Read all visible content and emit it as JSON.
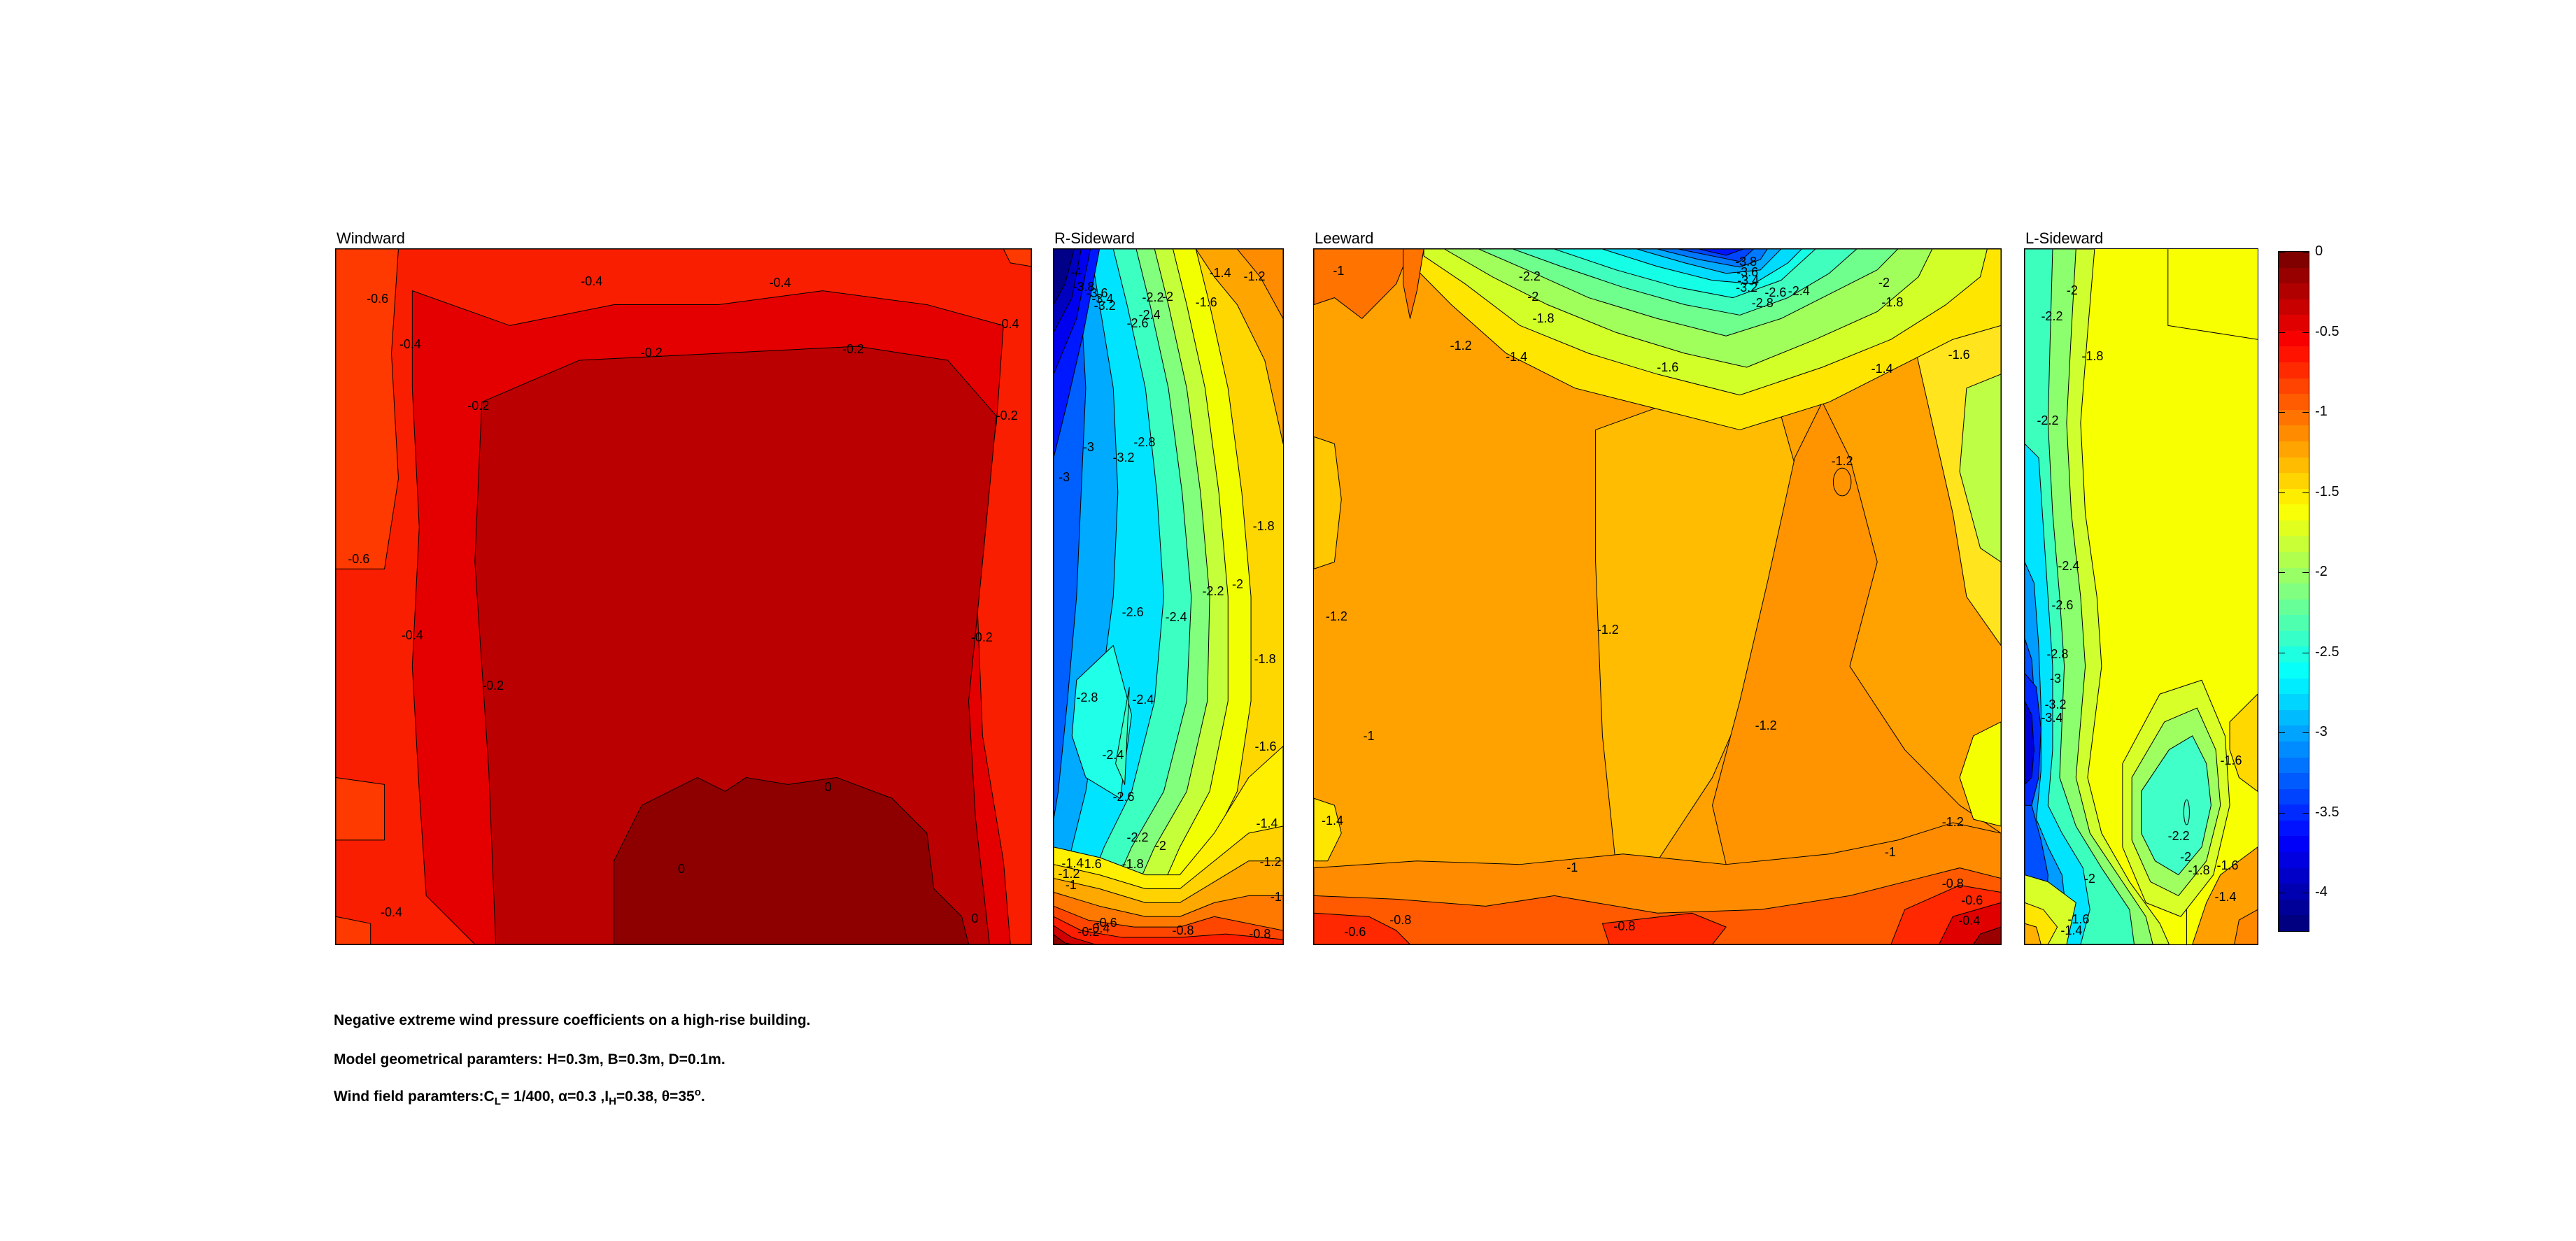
{
  "figure": {
    "background_color": "#ffffff"
  },
  "panel_titles": {
    "windward": "Windward",
    "r_sideward": "R-Sideward",
    "leeward": "Leeward",
    "l_sideward": "L-Sideward"
  },
  "captions": {
    "line1": "Negative extreme wind pressure coefficients on a high-rise building.",
    "line2": "Model geometrical paramters: H=0.3m, B=0.3m, D=0.1m.",
    "line3": {
      "p1": "Wind field paramters:C",
      "sub1": "L",
      "p2": "= 1/400, α=0.3 ,I",
      "sub2": "H",
      "p3": "=0.38, θ=35",
      "sup1": "o",
      "p4": "."
    }
  },
  "chart_data": {
    "type": "heatmap",
    "subtype": "filled-contour",
    "title": "Negative extreme wind pressure coefficients on a high-rise building",
    "contour_interval": 0.2,
    "value_range": [
      -4.24,
      0
    ],
    "colormap": "jet reversed (0 = dark red at top, -4.24 = dark blue at bottom)",
    "legend_position": "right colorbar",
    "colorbar": {
      "min": -4.24,
      "max": 0,
      "top_color": "#800000",
      "bottom_color": "#000080",
      "ticks": [
        {
          "label": "0",
          "value": 0
        },
        {
          "label": "-0.5",
          "value": -0.5
        },
        {
          "label": "-1",
          "value": -1
        },
        {
          "label": "-1.5",
          "value": -1.5
        },
        {
          "label": "-2",
          "value": -2
        },
        {
          "label": "-2.5",
          "value": -2.5
        },
        {
          "label": "-3",
          "value": -3
        },
        {
          "label": "-3.5",
          "value": -3.5
        },
        {
          "label": "-4",
          "value": -4
        }
      ]
    },
    "panels": [
      {
        "title": "Windward",
        "value_summary": "mostly 0 to -0.8, darkest red core near 0 at bottom center",
        "contour_labels": [
          {
            "t": "-0.6",
            "x": 6.0,
            "y": 7.1
          },
          {
            "t": "-0.4",
            "x": 36.8,
            "y": 4.6
          },
          {
            "t": "-0.4",
            "x": 63.9,
            "y": 4.8
          },
          {
            "t": "-0.4",
            "x": 10.7,
            "y": 13.7
          },
          {
            "t": "-0.2",
            "x": 45.4,
            "y": 14.9
          },
          {
            "t": "-0.2",
            "x": 74.4,
            "y": 14.4
          },
          {
            "t": "-0.4",
            "x": 96.7,
            "y": 10.8
          },
          {
            "t": "-0.2",
            "x": 96.5,
            "y": 23.9
          },
          {
            "t": "-0.2",
            "x": 20.5,
            "y": 22.5
          },
          {
            "t": "-0.6",
            "x": 3.3,
            "y": 44.6
          },
          {
            "t": "-0.4",
            "x": 11.0,
            "y": 55.5
          },
          {
            "t": "-0.2",
            "x": 22.6,
            "y": 62.8
          },
          {
            "t": "-0.2",
            "x": 92.9,
            "y": 55.8
          },
          {
            "t": "0",
            "x": 70.8,
            "y": 77.4
          },
          {
            "t": "0",
            "x": 49.7,
            "y": 89.1
          },
          {
            "t": "0",
            "x": 91.9,
            "y": 96.3
          },
          {
            "t": "-0.4",
            "x": 8.0,
            "y": 95.4
          }
        ]
      },
      {
        "title": "R-Sideward",
        "value_summary": "strong suction, -4.2 dark blue at top-left corner grading to -1 orange at top-right and -0.2 red at bottom-left",
        "contour_labels": [
          {
            "t": "-4",
            "x": 9.8,
            "y": 3.3
          },
          {
            "t": "-3.8",
            "x": 13.1,
            "y": 5.4
          },
          {
            "t": "-3.6",
            "x": 18.9,
            "y": 6.3
          },
          {
            "t": "-3.4",
            "x": 21.3,
            "y": 7.1
          },
          {
            "t": "-3.2",
            "x": 22.3,
            "y": 8.1
          },
          {
            "t": "-2.2",
            "x": 43.3,
            "y": 6.9
          },
          {
            "t": "-2",
            "x": 49.7,
            "y": 6.8
          },
          {
            "t": "-2.4",
            "x": 41.8,
            "y": 9.5
          },
          {
            "t": "-2.6",
            "x": 36.6,
            "y": 10.7
          },
          {
            "t": "-1.4",
            "x": 72.6,
            "y": 3.4
          },
          {
            "t": "-1.2",
            "x": 87.5,
            "y": 3.9
          },
          {
            "t": "-1.6",
            "x": 66.5,
            "y": 7.6
          },
          {
            "t": "-3",
            "x": 15.2,
            "y": 28.5
          },
          {
            "t": "-2.8",
            "x": 39.6,
            "y": 27.8
          },
          {
            "t": "-3.2",
            "x": 30.5,
            "y": 30.0
          },
          {
            "t": "-3",
            "x": 4.6,
            "y": 32.8
          },
          {
            "t": "-1.8",
            "x": 91.5,
            "y": 39.8
          },
          {
            "t": "-2.6",
            "x": 34.5,
            "y": 52.2
          },
          {
            "t": "-2.4",
            "x": 53.4,
            "y": 52.9
          },
          {
            "t": "-2.2",
            "x": 69.5,
            "y": 49.2
          },
          {
            "t": "-2",
            "x": 80.2,
            "y": 48.2
          },
          {
            "t": "-1.8",
            "x": 92.1,
            "y": 59.0
          },
          {
            "t": "-2.8",
            "x": 14.6,
            "y": 64.5
          },
          {
            "t": "-2.4",
            "x": 39.0,
            "y": 64.8
          },
          {
            "t": "-2.4",
            "x": 25.9,
            "y": 72.7
          },
          {
            "t": "-1.6",
            "x": 92.4,
            "y": 71.5
          },
          {
            "t": "-2.6",
            "x": 30.5,
            "y": 78.8
          },
          {
            "t": "-2.2",
            "x": 36.6,
            "y": 84.6
          },
          {
            "t": "-2",
            "x": 46.6,
            "y": 85.8
          },
          {
            "t": "-1.4",
            "x": 93.0,
            "y": 82.6
          },
          {
            "t": "-1.4",
            "x": 8.2,
            "y": 88.3
          },
          {
            "t": "-1.6",
            "x": 16.2,
            "y": 88.4
          },
          {
            "t": "-1.8",
            "x": 34.5,
            "y": 88.4
          },
          {
            "t": "-1.2",
            "x": 6.7,
            "y": 89.8
          },
          {
            "t": "-1.2",
            "x": 94.5,
            "y": 88.1
          },
          {
            "t": "-1",
            "x": 7.6,
            "y": 91.4
          },
          {
            "t": "-1",
            "x": 96.9,
            "y": 93.2
          },
          {
            "t": "-0.6",
            "x": 22.9,
            "y": 96.9
          },
          {
            "t": "-0.4",
            "x": 19.8,
            "y": 97.7
          },
          {
            "t": "-0.2",
            "x": 15.2,
            "y": 98.2
          },
          {
            "t": "-0.8",
            "x": 56.4,
            "y": 98.0
          },
          {
            "t": "-0.8",
            "x": 89.9,
            "y": 98.5
          }
        ]
      },
      {
        "title": "Leeward",
        "value_summary": "mostly -1 to -1.2 orange; deep blue pocket to -3.8 at top right; -0.4 red band at bottom right",
        "contour_labels": [
          {
            "t": "-1",
            "x": 3.6,
            "y": 3.1
          },
          {
            "t": "-2.2",
            "x": 31.4,
            "y": 3.9
          },
          {
            "t": "-2",
            "x": 31.9,
            "y": 6.8
          },
          {
            "t": "-1.8",
            "x": 33.4,
            "y": 10.0
          },
          {
            "t": "-1.2",
            "x": 21.4,
            "y": 13.9
          },
          {
            "t": "-1.4",
            "x": 29.5,
            "y": 15.5
          },
          {
            "t": "-1.6",
            "x": 51.5,
            "y": 17.0
          },
          {
            "t": "-3.8",
            "x": 62.9,
            "y": 1.8
          },
          {
            "t": "-3.6",
            "x": 63.1,
            "y": 3.3
          },
          {
            "t": "-3.4",
            "x": 63.2,
            "y": 4.5
          },
          {
            "t": "-3.2",
            "x": 63.0,
            "y": 5.5
          },
          {
            "t": "-2.6",
            "x": 67.2,
            "y": 6.2
          },
          {
            "t": "-2.4",
            "x": 70.6,
            "y": 6.0
          },
          {
            "t": "-2.8",
            "x": 65.3,
            "y": 7.7
          },
          {
            "t": "-2",
            "x": 83.0,
            "y": 4.8
          },
          {
            "t": "-1.8",
            "x": 84.2,
            "y": 7.6
          },
          {
            "t": "-1.6",
            "x": 93.9,
            "y": 15.2
          },
          {
            "t": "-1.4",
            "x": 82.7,
            "y": 17.2
          },
          {
            "t": "-1.2",
            "x": 76.9,
            "y": 30.5
          },
          {
            "t": "-1.2",
            "x": 3.3,
            "y": 52.8
          },
          {
            "t": "-1.2",
            "x": 42.8,
            "y": 54.7
          },
          {
            "t": "-1.2",
            "x": 65.8,
            "y": 68.5
          },
          {
            "t": "-1",
            "x": 8.0,
            "y": 70.0
          },
          {
            "t": "-1.4",
            "x": 2.7,
            "y": 82.2
          },
          {
            "t": "-1.2",
            "x": 93.0,
            "y": 82.4
          },
          {
            "t": "-1",
            "x": 83.9,
            "y": 86.7
          },
          {
            "t": "-1",
            "x": 37.6,
            "y": 88.9
          },
          {
            "t": "-0.8",
            "x": 93.0,
            "y": 91.2
          },
          {
            "t": "-0.6",
            "x": 95.8,
            "y": 93.7
          },
          {
            "t": "-0.4",
            "x": 95.4,
            "y": 96.6
          },
          {
            "t": "-0.8",
            "x": 12.6,
            "y": 96.5
          },
          {
            "t": "-0.6",
            "x": 6.0,
            "y": 98.2
          },
          {
            "t": "-0.8",
            "x": 45.2,
            "y": 97.4
          }
        ]
      },
      {
        "title": "L-Sideward",
        "value_summary": "yellow -1.6 to -1.8 over most; blue pocket to -3.4 at lower left edge; orange -1.4 corners at bottom",
        "contour_labels": [
          {
            "t": "-2",
            "x": 20.4,
            "y": 5.9
          },
          {
            "t": "-2.2",
            "x": 11.7,
            "y": 9.7
          },
          {
            "t": "-1.8",
            "x": 29.1,
            "y": 15.4
          },
          {
            "t": "-2.2",
            "x": 9.9,
            "y": 24.6
          },
          {
            "t": "-2.4",
            "x": 18.9,
            "y": 45.6
          },
          {
            "t": "-2.6",
            "x": 16.2,
            "y": 51.2
          },
          {
            "t": "-2.8",
            "x": 14.1,
            "y": 58.2
          },
          {
            "t": "-3",
            "x": 13.2,
            "y": 61.8
          },
          {
            "t": "-3.2",
            "x": 13.2,
            "y": 65.5
          },
          {
            "t": "-3.4",
            "x": 11.7,
            "y": 67.4
          },
          {
            "t": "-1.6",
            "x": 88.6,
            "y": 73.5
          },
          {
            "t": "-2.2",
            "x": 66.1,
            "y": 84.4
          },
          {
            "t": "-2",
            "x": 69.1,
            "y": 87.4
          },
          {
            "t": "-1.8",
            "x": 74.8,
            "y": 89.3
          },
          {
            "t": "-1.6",
            "x": 87.1,
            "y": 88.6
          },
          {
            "t": "-2",
            "x": 27.9,
            "y": 90.5
          },
          {
            "t": "-1.4",
            "x": 86.2,
            "y": 93.2
          },
          {
            "t": "-1.6",
            "x": 23.1,
            "y": 96.4
          },
          {
            "t": "-1.4",
            "x": 20.1,
            "y": 98.0
          }
        ]
      }
    ]
  }
}
